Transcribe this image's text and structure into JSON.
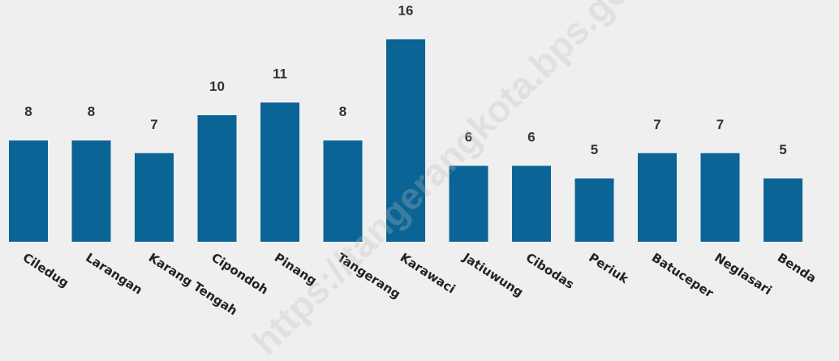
{
  "chart_data": {
    "type": "bar",
    "categories": [
      "Ciledug",
      "Larangan",
      "Karang Tengah",
      "Cipondoh",
      "Pinang",
      "Tangerang",
      "Karawaci",
      "Jatiuwung",
      "Cibodas",
      "Periuk",
      "Batuceper",
      "Neglasari",
      "Benda"
    ],
    "values": [
      8,
      8,
      7,
      10,
      11,
      8,
      16,
      6,
      6,
      5,
      7,
      7,
      5
    ],
    "title": "",
    "xlabel": "",
    "ylabel": "",
    "ylim": [
      0,
      17
    ],
    "grid": false,
    "legend": "none",
    "bar_color": "#0a6496",
    "background": "#efefef"
  },
  "watermark": {
    "text": "https://tangerangkota.bps.go.id"
  }
}
